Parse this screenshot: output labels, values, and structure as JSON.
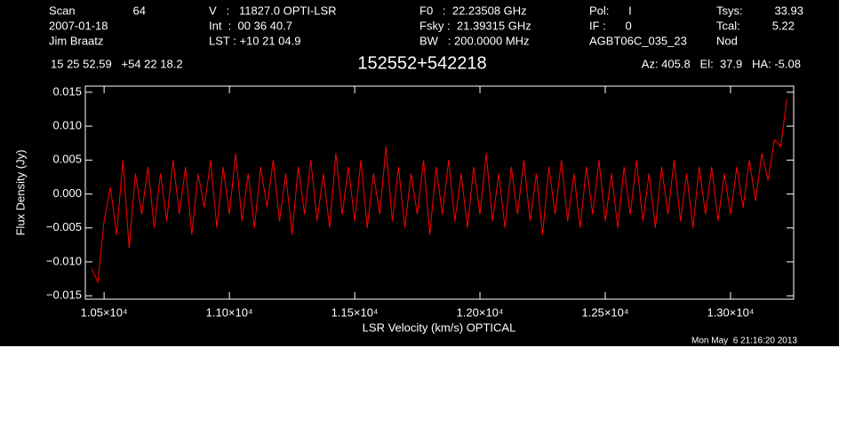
{
  "header": {
    "scan_label": "Scan",
    "scan": "64",
    "date": "2007-01-18",
    "observer": "Jim Braatz",
    "velocity": "V   :   11827.0 OPTI-LSR",
    "integration": "Int  :  00 36 40.7",
    "lst": "LST : +10 21 04.9",
    "f0": "F0   :  22.23508 GHz",
    "fsky": "Fsky :  21.39315 GHz",
    "bw": "BW   : 200.0000 MHz",
    "pol": "Pol:      I",
    "if": "IF :      0",
    "project": "AGBT06C_035_23",
    "tsys_label": "Tsys:",
    "tsys": "33.93",
    "tcal_label": "Tcal:",
    "tcal": "5.22",
    "proc": "Nod",
    "coords": "15 25 52.59   +54 22 18.2",
    "azelha": "Az: 405.8   El:  37.9   HA: -5.08"
  },
  "chart_data": {
    "type": "line",
    "title": "152552+542218",
    "x_label": "LSR Velocity (km/s) OPTICAL",
    "y_label": "Flux Density (Jy)",
    "x": [
      10450,
      10475,
      10500,
      10525,
      10550,
      10575,
      10600,
      10625,
      10650,
      10675,
      10700,
      10725,
      10750,
      10775,
      10800,
      10825,
      10850,
      10875,
      10900,
      10925,
      10950,
      10975,
      11000,
      11025,
      11050,
      11075,
      11100,
      11125,
      11150,
      11175,
      11200,
      11225,
      11250,
      11275,
      11300,
      11325,
      11350,
      11375,
      11400,
      11425,
      11450,
      11475,
      11500,
      11525,
      11550,
      11575,
      11600,
      11625,
      11650,
      11675,
      11700,
      11725,
      11750,
      11775,
      11800,
      11825,
      11850,
      11875,
      11900,
      11925,
      11950,
      11975,
      12000,
      12025,
      12050,
      12075,
      12100,
      12125,
      12150,
      12175,
      12200,
      12225,
      12250,
      12275,
      12300,
      12325,
      12350,
      12375,
      12400,
      12425,
      12450,
      12475,
      12500,
      12525,
      12550,
      12575,
      12600,
      12625,
      12650,
      12675,
      12700,
      12725,
      12750,
      12775,
      12800,
      12825,
      12850,
      12875,
      12900,
      12925,
      12950,
      12975,
      13000,
      13025,
      13050,
      13075,
      13100,
      13125,
      13150,
      13175,
      13200,
      13225
    ],
    "series": [
      {
        "name": "spectrum",
        "color": "#ff0000",
        "values": [
          -0.011,
          -0.013,
          -0.004,
          0.001,
          -0.006,
          0.005,
          -0.008,
          0.003,
          -0.003,
          0.004,
          -0.005,
          0.003,
          -0.004,
          0.005,
          -0.003,
          0.004,
          -0.006,
          0.003,
          -0.002,
          0.005,
          -0.005,
          0.004,
          -0.003,
          0.006,
          -0.004,
          0.003,
          -0.005,
          0.004,
          -0.002,
          0.005,
          -0.004,
          0.003,
          -0.006,
          0.004,
          -0.003,
          0.005,
          -0.004,
          0.003,
          -0.005,
          0.006,
          -0.003,
          0.004,
          -0.004,
          0.005,
          -0.005,
          0.003,
          -0.003,
          0.007,
          -0.004,
          0.004,
          -0.005,
          0.003,
          -0.003,
          0.005,
          -0.006,
          0.004,
          -0.003,
          0.005,
          -0.004,
          0.003,
          -0.005,
          0.004,
          -0.003,
          0.006,
          -0.004,
          0.003,
          -0.005,
          0.004,
          -0.003,
          0.005,
          -0.004,
          0.003,
          -0.006,
          0.004,
          -0.003,
          0.005,
          -0.004,
          0.003,
          -0.005,
          0.004,
          -0.003,
          0.005,
          -0.004,
          0.003,
          -0.005,
          0.004,
          -0.003,
          0.005,
          -0.004,
          0.003,
          -0.005,
          0.004,
          -0.003,
          0.005,
          -0.004,
          0.003,
          -0.005,
          0.004,
          -0.003,
          0.004,
          -0.004,
          0.003,
          -0.003,
          0.004,
          -0.002,
          0.005,
          -0.001,
          0.006,
          0.002,
          0.008,
          0.007,
          0.014
        ]
      }
    ],
    "xlim": [
      10425,
      13252
    ],
    "ylim": [
      -0.0155,
      0.0159
    ],
    "xticks": [
      {
        "value": 10500,
        "label": "1.05×10⁴"
      },
      {
        "value": 11000,
        "label": "1.10×10⁴"
      },
      {
        "value": 11500,
        "label": "1.15×10⁴"
      },
      {
        "value": 12000,
        "label": "1.20×10⁴"
      },
      {
        "value": 12500,
        "label": "1.25×10⁴"
      },
      {
        "value": 13000,
        "label": "1.30×10⁴"
      }
    ],
    "yticks": [
      {
        "value": -0.015,
        "label": "−0.015"
      },
      {
        "value": -0.01,
        "label": "−0.010"
      },
      {
        "value": -0.005,
        "label": "−0.005"
      },
      {
        "value": 0,
        "label": "0.000"
      },
      {
        "value": 0.005,
        "label": "0.005"
      },
      {
        "value": 0.01,
        "label": "0.010"
      },
      {
        "value": 0.015,
        "label": "0.015"
      }
    ],
    "grid": false
  },
  "timestamp": "Mon May  6 21:16:20 2013"
}
